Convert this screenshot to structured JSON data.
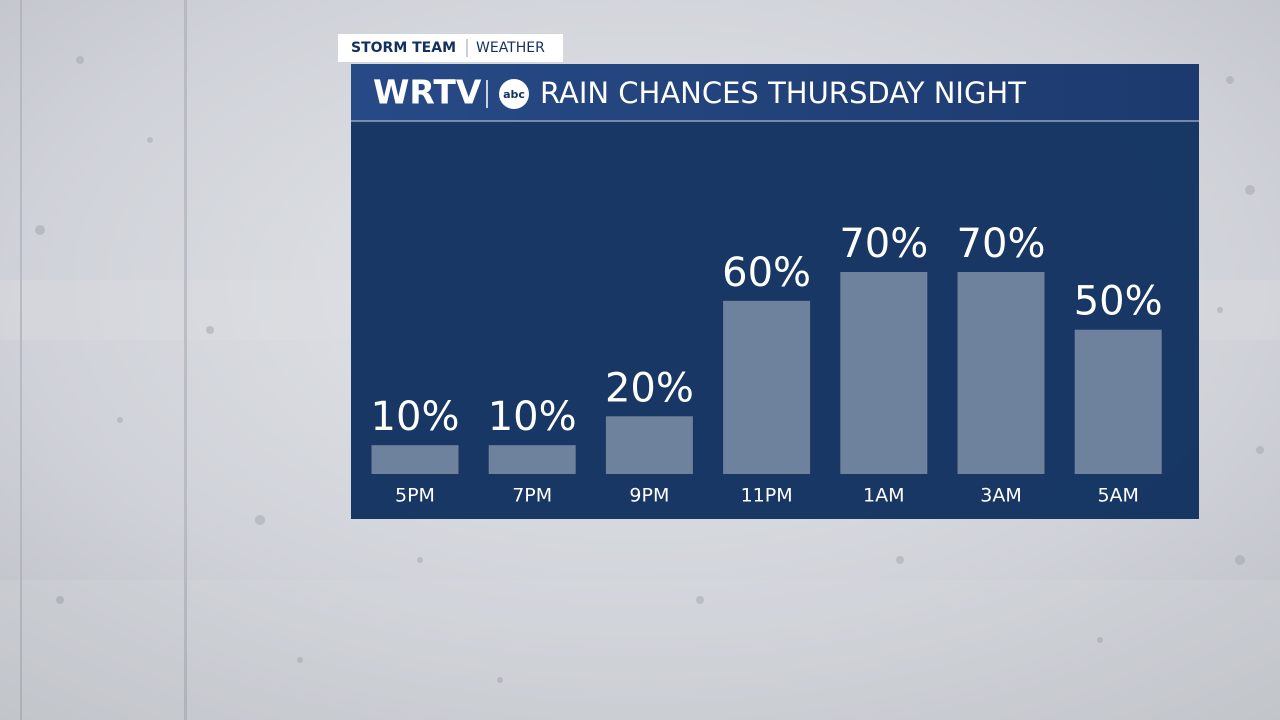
{
  "header": {
    "tag": "STORM TEAM",
    "section": "WEATHER",
    "station": "WRTV",
    "network": "abc"
  },
  "chart_data": {
    "type": "bar",
    "title": "RAIN CHANCES THURSDAY NIGHT",
    "categories": [
      "5PM",
      "7PM",
      "9PM",
      "11PM",
      "1AM",
      "3AM",
      "5AM"
    ],
    "values": [
      10,
      10,
      20,
      60,
      70,
      70,
      50
    ],
    "value_labels": [
      "10%",
      "10%",
      "20%",
      "60%",
      "70%",
      "70%",
      "50%"
    ],
    "color": "#6e819d"
  }
}
